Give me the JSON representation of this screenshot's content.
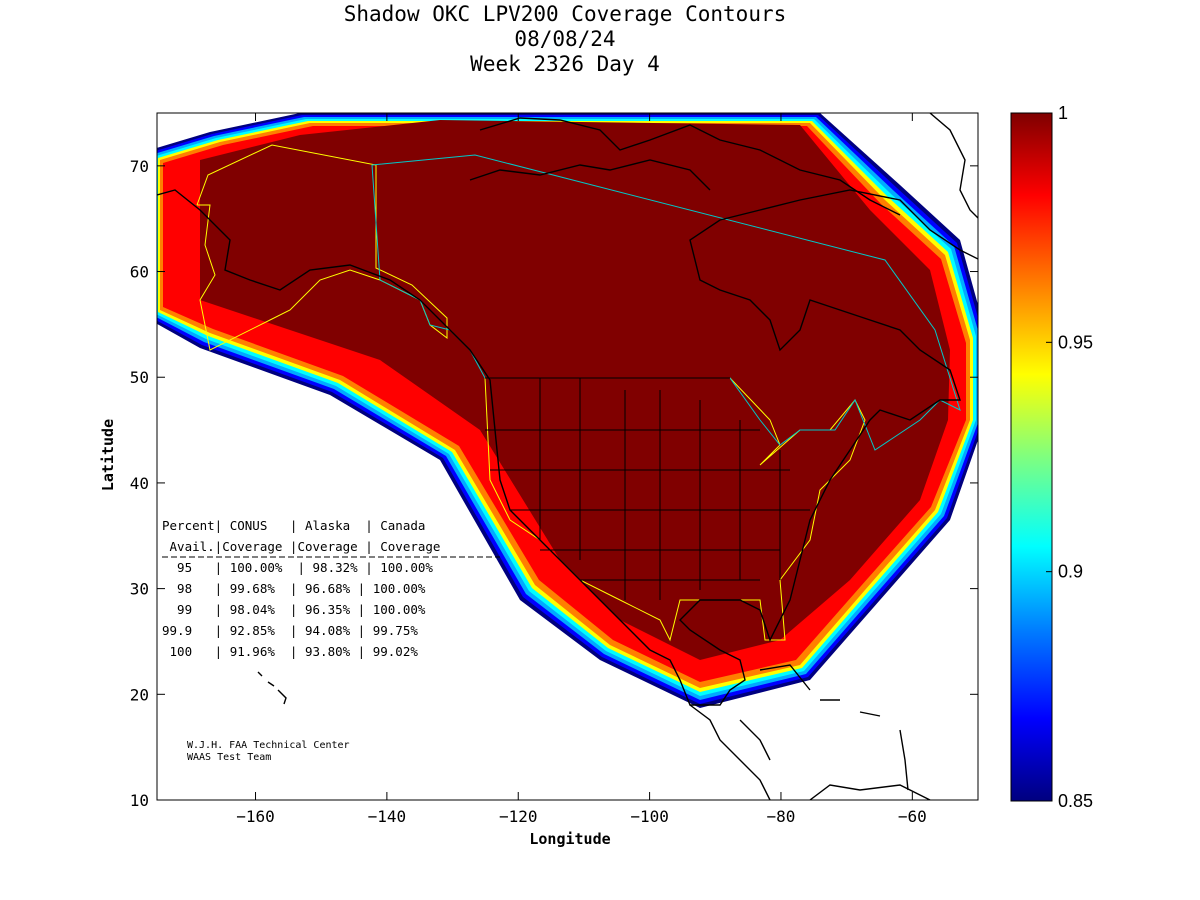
{
  "title": {
    "line1": "Shadow OKC LPV200 Coverage Contours",
    "line2": "08/08/24",
    "line3": "Week 2326 Day 4"
  },
  "axes": {
    "xlabel": "Longitude",
    "ylabel": "Latitude",
    "xlim": [
      -175,
      -50
    ],
    "ylim": [
      10,
      75
    ],
    "xticks": [
      -160,
      -140,
      -120,
      -100,
      -80,
      -60
    ],
    "yticks": [
      10,
      20,
      30,
      40,
      50,
      60,
      70
    ]
  },
  "colorbar": {
    "min": 0.85,
    "max": 1,
    "ticks": [
      {
        "value": 1,
        "label": "1"
      },
      {
        "value": 0.95,
        "label": "0.95"
      },
      {
        "value": 0.9,
        "label": "0.9"
      },
      {
        "value": 0.85,
        "label": "0.85"
      }
    ],
    "colormap": [
      "#00007f",
      "#0000ff",
      "#007fff",
      "#00ffff",
      "#7fff7f",
      "#ffff00",
      "#ff7f00",
      "#ff0000",
      "#7f0000"
    ]
  },
  "table": {
    "header1": "Percent| CONUS   | Alaska  | Canada",
    "header2": " Avail.|Coverage |Coverage | Coverage",
    "rows": [
      "  95   | 100.00%  | 98.32% | 100.00%",
      "  98   | 99.68%  | 96.68% | 100.00%",
      "  99   | 98.04%  | 96.35% | 100.00%",
      "99.9   | 92.85%  | 94.08% | 99.75%",
      " 100   | 91.96%  | 93.80% | 99.02%"
    ]
  },
  "credit": {
    "line1": "W.J.H. FAA Technical Center",
    "line2": "WAAS Test Team"
  },
  "colors": {
    "coverage_core": "#800000",
    "service_area_conus_alaska": "#ffff00",
    "service_area_canada": "#00c8c8"
  }
}
